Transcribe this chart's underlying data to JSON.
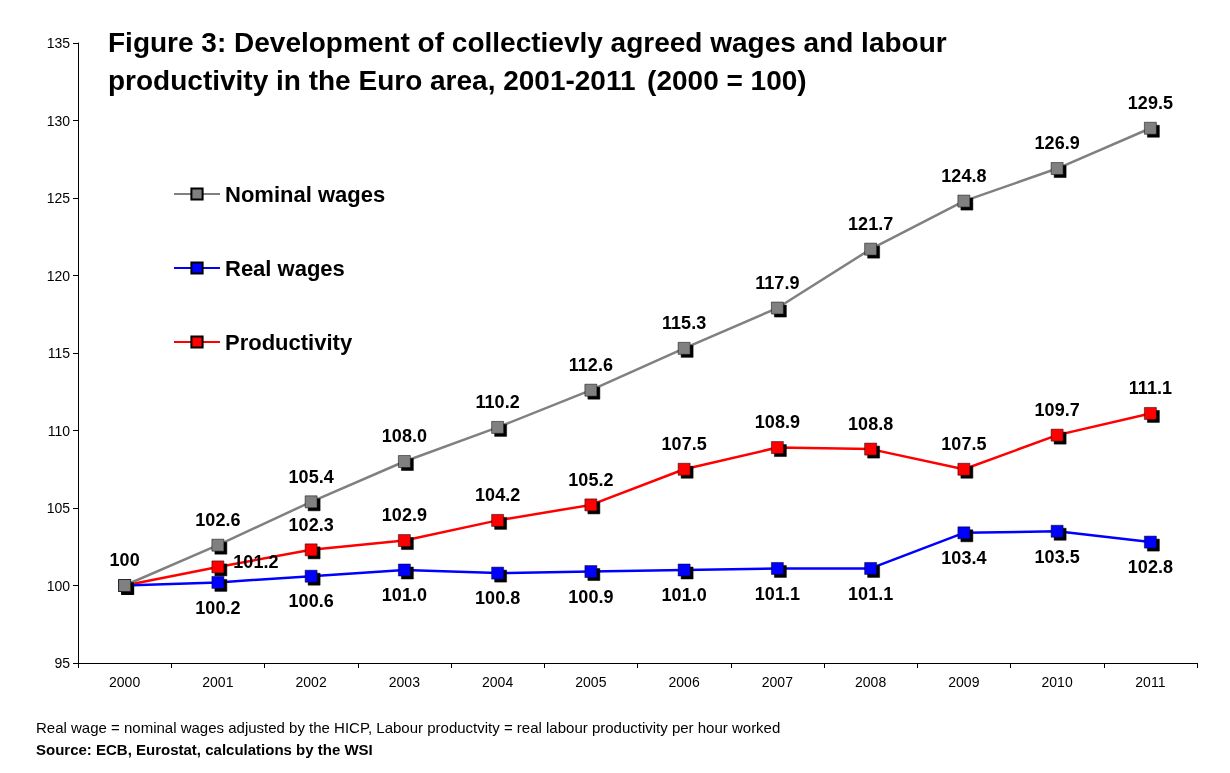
{
  "chart_data": {
    "type": "line",
    "title": "Figure 3: Development of collectievly agreed wages and labour productivity in the Euro area, 2001-2011",
    "subtitle": "(2000 = 100)",
    "categories": [
      "2000",
      "2001",
      "2002",
      "2003",
      "2004",
      "2005",
      "2006",
      "2007",
      "2008",
      "2009",
      "2010",
      "2011"
    ],
    "series": [
      {
        "name": "Nominal wages",
        "color": "#808080",
        "values": [
          100,
          102.6,
          105.4,
          108.0,
          110.2,
          112.6,
          115.3,
          117.9,
          121.7,
          124.8,
          126.9,
          129.5
        ],
        "value_labels": [
          "100",
          "102.6",
          "105.4",
          "108.0",
          "110.2",
          "112.6",
          "115.3",
          "117.9",
          "121.7",
          "124.8",
          "126.9",
          "129.5"
        ]
      },
      {
        "name": "Real wages",
        "color": "#0000ff",
        "values": [
          100,
          100.2,
          100.6,
          101.0,
          100.8,
          100.9,
          101.0,
          101.1,
          101.1,
          103.4,
          103.5,
          102.8
        ],
        "value_labels": [
          null,
          "100.2",
          "100.6",
          "101.0",
          "100.8",
          "100.9",
          "101.0",
          "101.1",
          "101.1",
          "103.4",
          "103.5",
          "102.8"
        ]
      },
      {
        "name": "Productivity",
        "color": "#ff0000",
        "values": [
          100,
          101.2,
          102.3,
          102.9,
          104.2,
          105.2,
          107.5,
          108.9,
          108.8,
          107.5,
          109.7,
          111.1
        ],
        "value_labels": [
          null,
          "101.2",
          "102.3",
          "102.9",
          "104.2",
          "105.2",
          "107.5",
          "108.9",
          "108.8",
          "107.5",
          "109.7",
          "111.1"
        ]
      }
    ],
    "ylim": [
      95,
      135
    ],
    "yticks": [
      95,
      100,
      105,
      110,
      115,
      120,
      125,
      130,
      135
    ],
    "grid": false,
    "legend": "top left",
    "marker": "square",
    "line_style": "solid",
    "annotations": [
      "Real wage = nominal wages adjusted by the HICP, Labour productvity = real labour productivity per hour worked",
      "Source: ECB, Eurostat, calculations by the WSI"
    ]
  }
}
